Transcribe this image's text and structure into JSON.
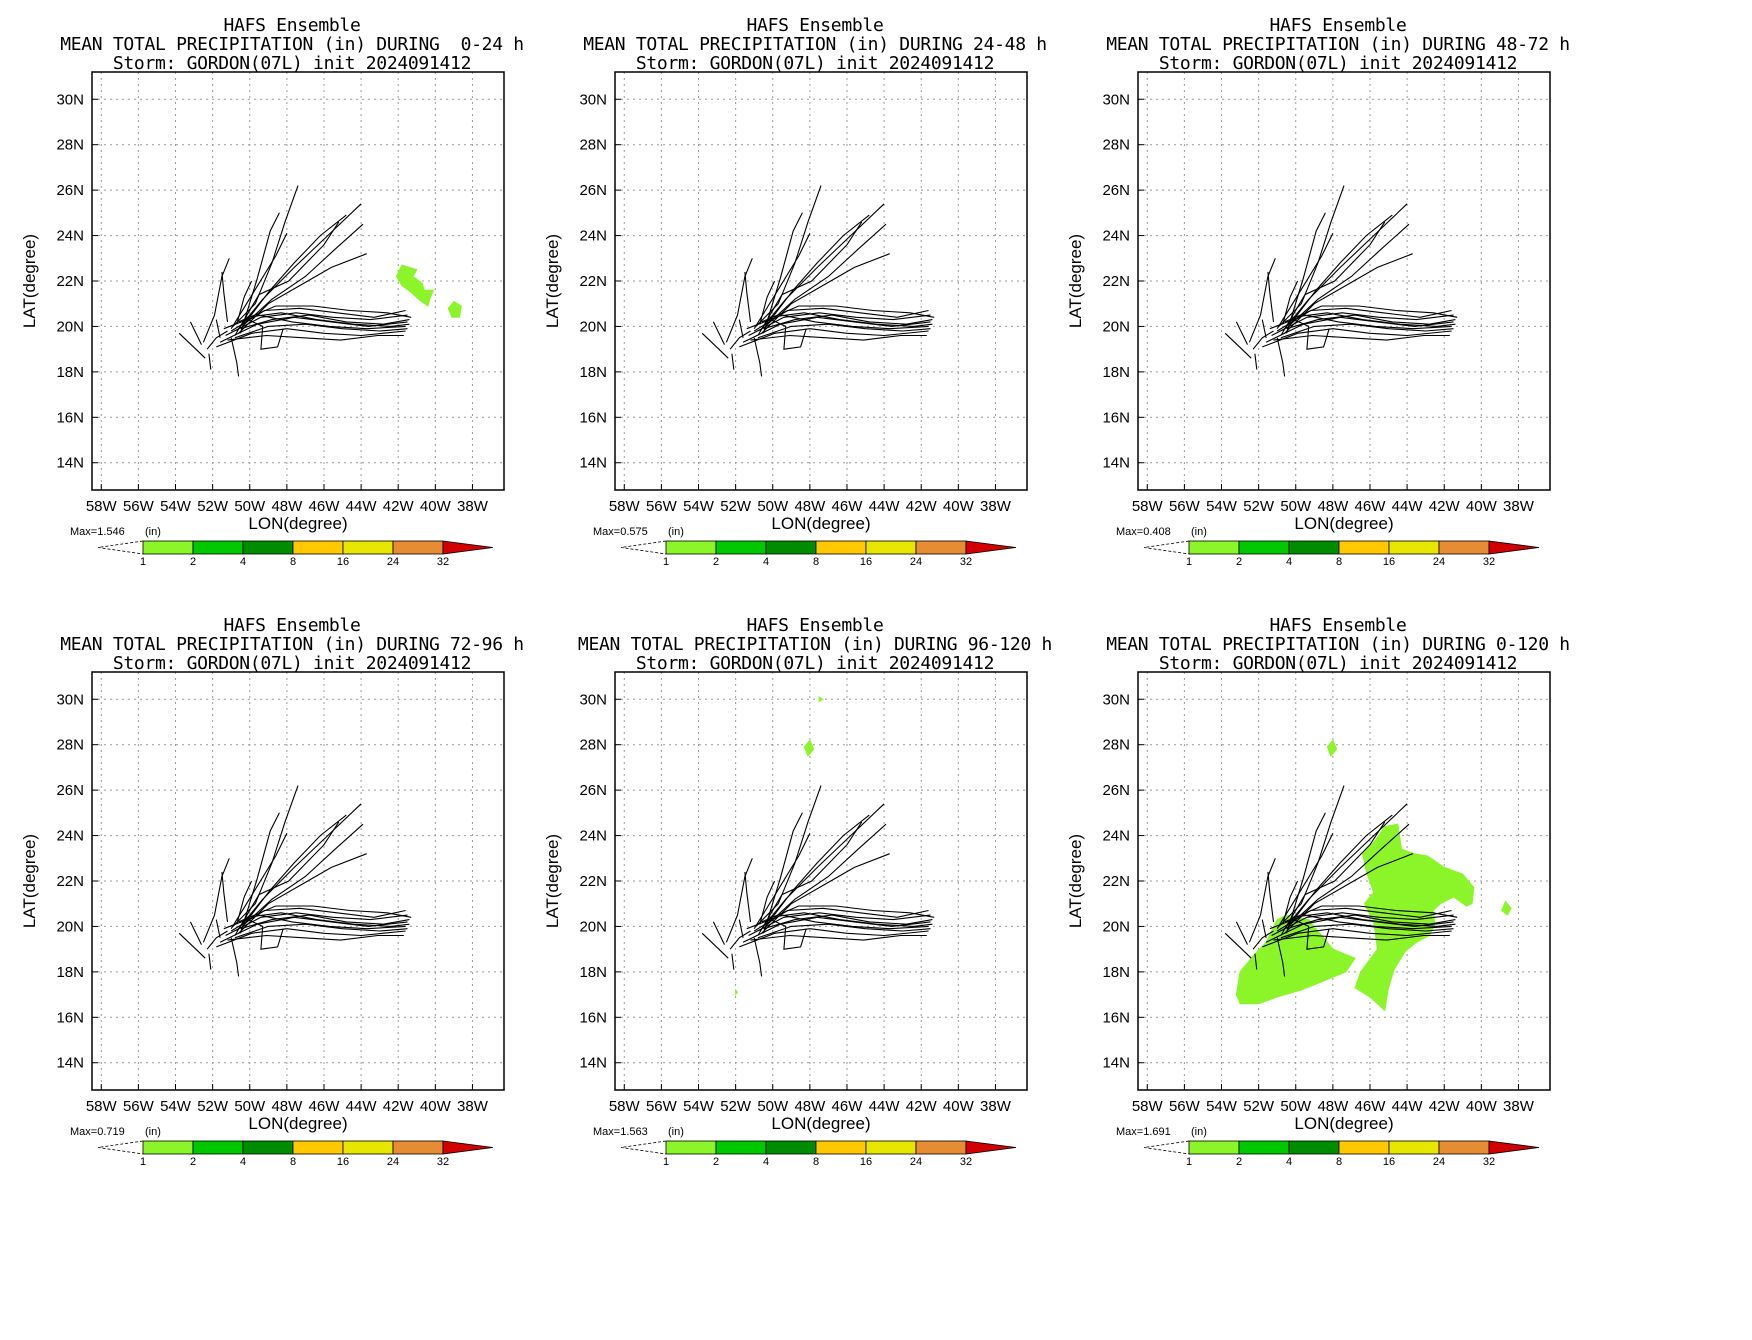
{
  "colors": {
    "precip_scale": [
      "#8cf52a",
      "#00c800",
      "#008c00",
      "#ffc800",
      "#e6e600",
      "#e68c32",
      "#d20000"
    ],
    "track": "#000000",
    "grid": "#999999"
  },
  "colorbar": {
    "unit": "(in)",
    "levels": [
      "1",
      "2",
      "4",
      "8",
      "16",
      "24",
      "32"
    ]
  },
  "panels": [
    {
      "title1": "HAFS Ensemble",
      "title2": "MEAN TOTAL PRECIPITATION (in) DURING  0-24 h",
      "title3": "Storm: GORDON(07L) init 2024091412",
      "max_label": "Max=1.546"
    },
    {
      "title1": "HAFS Ensemble",
      "title2": "MEAN TOTAL PRECIPITATION (in) DURING 24-48 h",
      "title3": "Storm: GORDON(07L) init 2024091412",
      "max_label": "Max=0.575"
    },
    {
      "title1": "HAFS Ensemble",
      "title2": "MEAN TOTAL PRECIPITATION (in) DURING 48-72 h",
      "title3": "Storm: GORDON(07L) init 2024091412",
      "max_label": "Max=0.408"
    },
    {
      "title1": "HAFS Ensemble",
      "title2": "MEAN TOTAL PRECIPITATION (in) DURING 72-96 h",
      "title3": "Storm: GORDON(07L) init 2024091412",
      "max_label": "Max=0.719"
    },
    {
      "title1": "HAFS Ensemble",
      "title2": "MEAN TOTAL PRECIPITATION (in) DURING 96-120 h",
      "title3": "Storm: GORDON(07L) init 2024091412",
      "max_label": "Max=1.563"
    },
    {
      "title1": "HAFS Ensemble",
      "title2": "MEAN TOTAL PRECIPITATION (in) DURING 0-120 h",
      "title3": "Storm: GORDON(07L) init 2024091412",
      "max_label": "Max=1.691"
    }
  ],
  "chart_data": {
    "type": "map",
    "xlabel": "LON(degree)",
    "ylabel": "LAT(degree)",
    "x_ticks": [
      "58W",
      "56W",
      "54W",
      "52W",
      "50W",
      "48W",
      "46W",
      "44W",
      "42W",
      "40W",
      "38W"
    ],
    "y_ticks": [
      "30N",
      "28N",
      "26N",
      "24N",
      "22N",
      "20N",
      "18N",
      "16N",
      "14N"
    ],
    "xlim_lon": [
      -58.5,
      -36.3
    ],
    "ylim_lat": [
      12.8,
      31.2
    ],
    "tracks": [
      [
        [
          -51.3,
          19.6
        ],
        [
          -49.4,
          20.4
        ],
        [
          -47.5,
          20.6
        ],
        [
          -45.5,
          20.4
        ],
        [
          -43.5,
          20.3
        ],
        [
          -41.5,
          20.5
        ]
      ],
      [
        [
          -51.6,
          19.3
        ],
        [
          -49.6,
          20.1
        ],
        [
          -47.6,
          20.4
        ],
        [
          -45.6,
          20.2
        ],
        [
          -43.6,
          20.0
        ],
        [
          -41.5,
          20.2
        ]
      ],
      [
        [
          -51.0,
          19.8
        ],
        [
          -49.2,
          20.7
        ],
        [
          -47.3,
          20.8
        ],
        [
          -45.3,
          20.6
        ],
        [
          -43.3,
          20.4
        ],
        [
          -41.6,
          20.7
        ]
      ],
      [
        [
          -50.8,
          19.5
        ],
        [
          -49.0,
          20.0
        ],
        [
          -47.0,
          20.1
        ],
        [
          -45.0,
          19.9
        ],
        [
          -43.0,
          19.8
        ],
        [
          -41.5,
          19.9
        ]
      ],
      [
        [
          -50.5,
          19.9
        ],
        [
          -48.8,
          20.3
        ],
        [
          -46.8,
          20.5
        ],
        [
          -44.8,
          20.2
        ],
        [
          -42.8,
          20.1
        ],
        [
          -41.4,
          20.3
        ]
      ],
      [
        [
          -51.8,
          19.1
        ],
        [
          -49.9,
          19.7
        ],
        [
          -48.0,
          19.9
        ],
        [
          -46.0,
          19.7
        ],
        [
          -44.0,
          19.6
        ],
        [
          -41.6,
          19.8
        ]
      ],
      [
        [
          -50.6,
          20.2
        ],
        [
          -48.6,
          20.9
        ],
        [
          -46.6,
          20.9
        ],
        [
          -44.6,
          20.7
        ],
        [
          -42.6,
          20.6
        ],
        [
          -41.3,
          20.4
        ]
      ],
      [
        [
          -51.2,
          19.4
        ],
        [
          -49.1,
          19.6
        ],
        [
          -47.1,
          19.5
        ],
        [
          -45.1,
          19.4
        ],
        [
          -43.1,
          19.6
        ],
        [
          -41.7,
          19.6
        ]
      ],
      [
        [
          -50.2,
          20.4
        ],
        [
          -48.3,
          20.6
        ],
        [
          -46.4,
          20.3
        ],
        [
          -44.4,
          20.1
        ],
        [
          -42.4,
          20.0
        ],
        [
          -41.4,
          20.1
        ]
      ],
      [
        [
          -51.4,
          19.9
        ],
        [
          -49.5,
          20.5
        ],
        [
          -47.7,
          20.2
        ],
        [
          -45.7,
          20.0
        ],
        [
          -43.7,
          19.9
        ],
        [
          -41.6,
          20.0
        ]
      ],
      [
        [
          -50.9,
          20.0
        ],
        [
          -49.7,
          21.0
        ],
        [
          -48.8,
          22.8
        ],
        [
          -48.1,
          24.6
        ],
        [
          -47.4,
          26.2
        ]
      ],
      [
        [
          -50.7,
          19.8
        ],
        [
          -49.3,
          21.2
        ],
        [
          -47.6,
          22.6
        ],
        [
          -45.8,
          24.0
        ],
        [
          -44.0,
          25.4
        ]
      ],
      [
        [
          -50.6,
          19.7
        ],
        [
          -49.0,
          21.0
        ],
        [
          -47.3,
          21.8
        ],
        [
          -45.6,
          22.6
        ],
        [
          -43.7,
          23.2
        ]
      ],
      [
        [
          -50.3,
          20.1
        ],
        [
          -48.9,
          21.6
        ],
        [
          -47.6,
          22.8
        ],
        [
          -46.2,
          24.0
        ],
        [
          -44.8,
          24.9
        ]
      ],
      [
        [
          -50.4,
          20.0
        ],
        [
          -48.8,
          21.2
        ],
        [
          -47.0,
          22.2
        ],
        [
          -45.4,
          23.4
        ],
        [
          -43.9,
          24.5
        ]
      ],
      [
        [
          -51.0,
          19.9
        ],
        [
          -49.8,
          21.5
        ],
        [
          -48.6,
          23.1
        ],
        [
          -48.0,
          24.1
        ]
      ],
      [
        [
          -50.5,
          19.7
        ],
        [
          -49.6,
          22.1
        ],
        [
          -48.9,
          24.2
        ],
        [
          -48.4,
          25.0
        ]
      ],
      [
        [
          -50.8,
          19.6
        ],
        [
          -49.5,
          21.4
        ],
        [
          -47.9,
          22.0
        ],
        [
          -46.0,
          23.6
        ],
        [
          -45.2,
          24.6
        ]
      ],
      [
        [
          -52.3,
          19.0
        ],
        [
          -51.8,
          19.5
        ],
        [
          -51.2,
          19.8
        ]
      ],
      [
        [
          -52.4,
          18.6
        ],
        [
          -52.9,
          19.0
        ],
        [
          -53.8,
          19.7
        ]
      ],
      [
        [
          -52.2,
          18.8
        ],
        [
          -52.1,
          18.1
        ]
      ],
      [
        [
          -52.6,
          19.2
        ],
        [
          -53.2,
          20.2
        ]
      ],
      [
        [
          -52.5,
          19.3
        ],
        [
          -51.9,
          20.5
        ],
        [
          -51.5,
          22.2
        ],
        [
          -51.1,
          23.0
        ]
      ],
      [
        [
          -51.2,
          20.2
        ],
        [
          -51.4,
          21.5
        ],
        [
          -51.5,
          22.4
        ]
      ],
      [
        [
          -51.0,
          19.5
        ],
        [
          -50.7,
          18.4
        ],
        [
          -50.6,
          17.8
        ]
      ],
      [
        [
          -50.1,
          20.3
        ],
        [
          -49.3,
          20.0
        ],
        [
          -49.4,
          19.0
        ],
        [
          -48.5,
          19.1
        ],
        [
          -48.2,
          19.9
        ]
      ],
      [
        [
          -50.7,
          20.1
        ],
        [
          -50.3,
          21.3
        ],
        [
          -49.9,
          22.0
        ]
      ],
      [
        [
          -51.6,
          19.5
        ],
        [
          -51.8,
          20.3
        ]
      ]
    ],
    "precip_regions": [
      {
        "panel": 0,
        "level": "1-2",
        "polygon": [
          [
            -41.8,
            22.7
          ],
          [
            -41.0,
            22.5
          ],
          [
            -41.2,
            22.2
          ],
          [
            -40.7,
            21.9
          ],
          [
            -40.6,
            21.6
          ],
          [
            -40.1,
            21.6
          ],
          [
            -40.3,
            21.2
          ],
          [
            -40.4,
            20.9
          ],
          [
            -40.9,
            21.2
          ],
          [
            -41.3,
            21.5
          ],
          [
            -41.8,
            21.8
          ],
          [
            -42.1,
            22.2
          ]
        ]
      },
      {
        "panel": 0,
        "level": "1-2",
        "polygon": [
          [
            -39.0,
            21.1
          ],
          [
            -38.6,
            20.9
          ],
          [
            -38.7,
            20.4
          ],
          [
            -39.1,
            20.4
          ],
          [
            -39.3,
            20.8
          ]
        ]
      },
      {
        "panel": 4,
        "level": "1-2",
        "polygon": [
          [
            -48.0,
            28.2
          ],
          [
            -47.8,
            27.8
          ],
          [
            -48.1,
            27.5
          ],
          [
            -48.3,
            27.9
          ]
        ]
      },
      {
        "panel": 4,
        "level": "1-2",
        "polygon": [
          [
            -47.5,
            30.1
          ],
          [
            -47.3,
            30.0
          ],
          [
            -47.5,
            29.9
          ]
        ]
      },
      {
        "panel": 4,
        "level": "1-2",
        "polygon": [
          [
            -52.0,
            17.2
          ],
          [
            -51.9,
            17.1
          ],
          [
            -52.0,
            17.0
          ]
        ]
      },
      {
        "panel": 5,
        "level": "1-2",
        "polygon": [
          [
            -50.5,
            20.5
          ],
          [
            -49.3,
            20.3
          ],
          [
            -48.5,
            19.5
          ],
          [
            -48.0,
            19.0
          ],
          [
            -46.8,
            18.6
          ],
          [
            -47.3,
            18.0
          ],
          [
            -48.5,
            17.6
          ],
          [
            -49.7,
            17.2
          ],
          [
            -51.0,
            16.9
          ],
          [
            -52.0,
            16.6
          ],
          [
            -53.0,
            16.6
          ],
          [
            -53.2,
            17.0
          ],
          [
            -53.0,
            18.0
          ],
          [
            -52.3,
            18.7
          ],
          [
            -51.6,
            19.3
          ],
          [
            -51.0,
            20.3
          ]
        ]
      },
      {
        "panel": 5,
        "level": "1-2",
        "polygon": [
          [
            -45.7,
            23.8
          ],
          [
            -45.2,
            24.4
          ],
          [
            -44.5,
            24.5
          ],
          [
            -44.3,
            23.4
          ],
          [
            -43.6,
            23.2
          ],
          [
            -42.9,
            23.1
          ],
          [
            -42.0,
            22.6
          ],
          [
            -41.0,
            22.3
          ],
          [
            -40.4,
            21.7
          ],
          [
            -40.5,
            21.0
          ],
          [
            -40.8,
            20.9
          ],
          [
            -41.5,
            21.3
          ],
          [
            -42.2,
            21.0
          ],
          [
            -42.6,
            20.7
          ],
          [
            -42.5,
            20.1
          ],
          [
            -42.8,
            19.6
          ],
          [
            -43.5,
            19.3
          ],
          [
            -44.1,
            18.9
          ],
          [
            -44.7,
            18.1
          ],
          [
            -45.0,
            17.3
          ],
          [
            -45.2,
            16.3
          ],
          [
            -46.0,
            16.9
          ],
          [
            -46.8,
            17.3
          ],
          [
            -46.5,
            18.0
          ],
          [
            -45.6,
            19.0
          ],
          [
            -45.8,
            20.2
          ],
          [
            -46.3,
            21.0
          ],
          [
            -45.8,
            21.5
          ],
          [
            -46.2,
            22.4
          ],
          [
            -46.4,
            23.2
          ]
        ]
      },
      {
        "panel": 5,
        "level": "1-2",
        "polygon": [
          [
            -38.7,
            21.1
          ],
          [
            -38.4,
            20.8
          ],
          [
            -38.6,
            20.5
          ],
          [
            -38.9,
            20.7
          ]
        ]
      },
      {
        "panel": 5,
        "level": "1-2",
        "polygon": [
          [
            -48.0,
            28.2
          ],
          [
            -47.8,
            27.8
          ],
          [
            -48.1,
            27.5
          ],
          [
            -48.3,
            27.9
          ]
        ]
      }
    ]
  }
}
